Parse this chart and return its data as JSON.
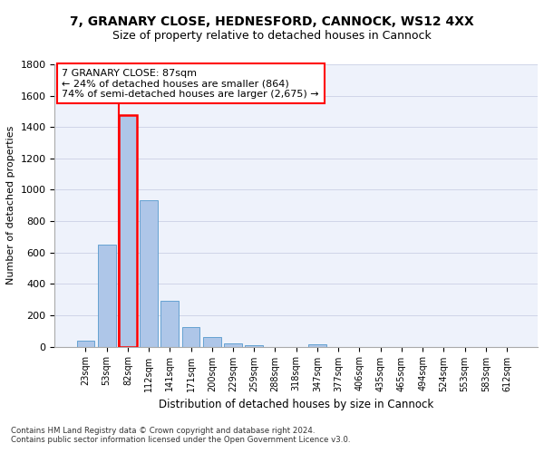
{
  "title_line1": "7, GRANARY CLOSE, HEDNESFORD, CANNOCK, WS12 4XX",
  "title_line2": "Size of property relative to detached houses in Cannock",
  "xlabel": "Distribution of detached houses by size in Cannock",
  "ylabel": "Number of detached properties",
  "footnote1": "Contains HM Land Registry data © Crown copyright and database right 2024.",
  "footnote2": "Contains public sector information licensed under the Open Government Licence v3.0.",
  "bar_labels": [
    "23sqm",
    "53sqm",
    "82sqm",
    "112sqm",
    "141sqm",
    "171sqm",
    "200sqm",
    "229sqm",
    "259sqm",
    "288sqm",
    "318sqm",
    "347sqm",
    "377sqm",
    "406sqm",
    "435sqm",
    "465sqm",
    "494sqm",
    "524sqm",
    "553sqm",
    "583sqm",
    "612sqm"
  ],
  "bar_values": [
    38,
    650,
    1475,
    935,
    290,
    125,
    60,
    22,
    10,
    0,
    0,
    14,
    0,
    0,
    0,
    0,
    0,
    0,
    0,
    0,
    0
  ],
  "bar_color": "#aec6e8",
  "bar_edge_color": "#5599cc",
  "highlight_idx": 2,
  "annotation_line1": "7 GRANARY CLOSE: 87sqm",
  "annotation_line2": "← 24% of detached houses are smaller (864)",
  "annotation_line3": "74% of semi-detached houses are larger (2,675) →",
  "ylim": [
    0,
    1800
  ],
  "yticks": [
    0,
    200,
    400,
    600,
    800,
    1000,
    1200,
    1400,
    1600,
    1800
  ],
  "bg_color": "#eef2fb",
  "grid_color": "#d0d5e8",
  "title_fontsize": 10,
  "subtitle_fontsize": 9,
  "annotation_fontsize": 8,
  "axis_fontsize": 8,
  "ylabel_fontsize": 8,
  "xlabel_fontsize": 8.5
}
